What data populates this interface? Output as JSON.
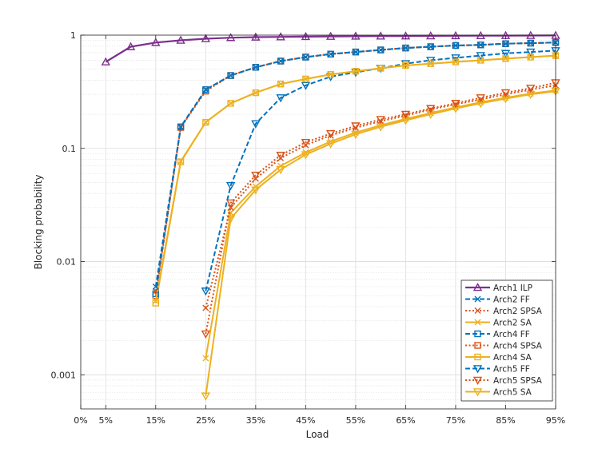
{
  "chart_data": {
    "type": "line",
    "title": "",
    "xlabel": "Load",
    "ylabel": "Blocking probability",
    "xlim": [
      0,
      95
    ],
    "ylim": [
      0.0005,
      1
    ],
    "yscale": "log",
    "grid": true,
    "legend_position": "bottom-right",
    "x_ticks": [
      {
        "value": 0,
        "label": "0%"
      },
      {
        "value": 5,
        "label": "5%"
      },
      {
        "value": 15,
        "label": "15%"
      },
      {
        "value": 25,
        "label": "25%"
      },
      {
        "value": 35,
        "label": "35%"
      },
      {
        "value": 45,
        "label": "45%"
      },
      {
        "value": 55,
        "label": "55%"
      },
      {
        "value": 65,
        "label": "65%"
      },
      {
        "value": 75,
        "label": "75%"
      },
      {
        "value": 85,
        "label": "85%"
      },
      {
        "value": 95,
        "label": "95%"
      }
    ],
    "y_ticks": [
      {
        "value": 0.001,
        "label": "0.001"
      },
      {
        "value": 0.01,
        "label": "0.01"
      },
      {
        "value": 0.1,
        "label": "0.1"
      },
      {
        "value": 1,
        "label": "1"
      }
    ],
    "series": [
      {
        "name": "Arch1 ILP",
        "color": "#7e2f8e",
        "dash": "solid",
        "marker": "triangle-up",
        "width": 2.2,
        "x": [
          5,
          10,
          15,
          20,
          25,
          30,
          35,
          40,
          45,
          50,
          55,
          60,
          65,
          70,
          75,
          80,
          85,
          90,
          95
        ],
        "y": [
          0.58,
          0.79,
          0.86,
          0.9,
          0.93,
          0.95,
          0.96,
          0.965,
          0.97,
          0.975,
          0.978,
          0.98,
          0.982,
          0.985,
          0.987,
          0.989,
          0.99,
          0.992,
          0.993
        ]
      },
      {
        "name": "Arch2 FF",
        "color": "#0072bd",
        "dash": "dash",
        "marker": "x",
        "width": 2,
        "x": [
          15,
          20,
          25,
          30,
          35,
          40,
          45,
          50,
          55,
          60,
          65,
          70,
          75,
          80,
          85,
          90,
          95
        ],
        "y": [
          0.006,
          0.155,
          0.33,
          0.44,
          0.52,
          0.59,
          0.64,
          0.68,
          0.71,
          0.74,
          0.77,
          0.79,
          0.81,
          0.82,
          0.84,
          0.85,
          0.86
        ]
      },
      {
        "name": "Arch2 SPSA",
        "color": "#d95319",
        "dash": "dot",
        "marker": "x",
        "width": 2,
        "x": [
          15,
          20,
          25,
          30,
          35,
          40,
          45,
          50,
          55,
          60,
          65,
          70,
          75,
          80,
          85,
          90,
          95
        ],
        "y": [
          0.0055,
          0.153,
          0.33,
          0.44,
          0.52,
          0.59,
          0.64,
          0.68,
          0.71,
          0.74,
          0.77,
          0.79,
          0.81,
          0.82,
          0.84,
          0.85,
          0.86
        ]
      },
      {
        "name": "Arch2 SA",
        "color": "#edb120",
        "dash": "solid",
        "marker": "x",
        "width": 2,
        "x": [
          15,
          20,
          25,
          30,
          35,
          40,
          45,
          50,
          55,
          60,
          65,
          70,
          75,
          80,
          85,
          90,
          95
        ],
        "y": [
          0.0045,
          0.077,
          0.17,
          0.25,
          0.31,
          0.37,
          0.41,
          0.45,
          0.48,
          0.51,
          0.54,
          0.56,
          0.58,
          0.6,
          0.62,
          0.64,
          0.66
        ]
      },
      {
        "name": "Arch4 FF",
        "color": "#0072bd",
        "dash": "dash",
        "marker": "square",
        "width": 2,
        "x": [
          15,
          20,
          25,
          30,
          35,
          40,
          45,
          50,
          55,
          60,
          65,
          70,
          75,
          80,
          85,
          90,
          95
        ],
        "y": [
          0.0052,
          0.155,
          0.33,
          0.44,
          0.52,
          0.59,
          0.64,
          0.68,
          0.71,
          0.74,
          0.77,
          0.79,
          0.81,
          0.82,
          0.84,
          0.85,
          0.86
        ]
      },
      {
        "name": "Arch4 SPSA",
        "color": "#d95319",
        "dash": "dot",
        "marker": "square",
        "width": 2,
        "x": [
          15,
          20,
          25,
          30,
          35,
          40,
          45,
          50,
          55,
          60,
          65,
          70,
          75,
          80,
          85,
          90,
          95
        ],
        "y": [
          0.005,
          0.153,
          0.32,
          0.44,
          0.52,
          0.59,
          0.64,
          0.68,
          0.71,
          0.74,
          0.77,
          0.79,
          0.81,
          0.82,
          0.84,
          0.85,
          0.86
        ]
      },
      {
        "name": "Arch4 SA",
        "color": "#edb120",
        "dash": "solid",
        "marker": "square",
        "width": 2,
        "x": [
          15,
          20,
          25,
          30,
          35,
          40,
          45,
          50,
          55,
          60,
          65,
          70,
          75,
          80,
          85,
          90,
          95
        ],
        "y": [
          0.0043,
          0.076,
          0.17,
          0.25,
          0.31,
          0.37,
          0.41,
          0.45,
          0.48,
          0.51,
          0.54,
          0.56,
          0.58,
          0.6,
          0.62,
          0.64,
          0.66
        ]
      },
      {
        "name": "Arch5 FF",
        "color": "#0072bd",
        "dash": "dash",
        "marker": "triangle-down",
        "width": 2,
        "x": [
          25,
          30,
          35,
          40,
          45,
          50,
          55,
          60,
          65,
          70,
          75,
          80,
          85,
          90,
          95
        ],
        "y": [
          0.0055,
          0.047,
          0.165,
          0.28,
          0.36,
          0.43,
          0.47,
          0.51,
          0.56,
          0.6,
          0.63,
          0.66,
          0.69,
          0.71,
          0.73
        ]
      },
      {
        "name": "Arch5 SPSA",
        "color": "#d95319",
        "dash": "dot",
        "marker": "triangle-down",
        "width": 2,
        "x": [
          25,
          30,
          35,
          40,
          45,
          50,
          55,
          60,
          65,
          70,
          75,
          80,
          85,
          90,
          95
        ],
        "y": [
          0.0023,
          0.033,
          0.058,
          0.087,
          0.113,
          0.135,
          0.158,
          0.18,
          0.2,
          0.225,
          0.25,
          0.28,
          0.31,
          0.34,
          0.38
        ]
      },
      {
        "name": "Arch5 SA",
        "color": "#edb120",
        "dash": "solid",
        "marker": "triangle-down",
        "width": 2,
        "x": [
          25,
          30,
          35,
          40,
          45,
          50,
          55,
          60,
          65,
          70,
          75,
          80,
          85,
          90,
          95
        ],
        "y": [
          0.00065,
          0.024,
          0.043,
          0.065,
          0.088,
          0.11,
          0.133,
          0.155,
          0.177,
          0.2,
          0.225,
          0.25,
          0.275,
          0.3,
          0.32
        ]
      },
      {
        "name": "",
        "color": "#d95319",
        "dash": "dot",
        "marker": "x",
        "width": 2,
        "legend": false,
        "x": [
          25,
          30,
          35,
          40,
          45,
          50,
          55,
          60,
          65,
          70,
          75,
          80,
          85,
          90,
          95
        ],
        "y": [
          0.0039,
          0.03,
          0.054,
          0.082,
          0.107,
          0.13,
          0.152,
          0.174,
          0.195,
          0.22,
          0.245,
          0.27,
          0.3,
          0.33,
          0.36
        ]
      },
      {
        "name": "",
        "color": "#edb120",
        "dash": "solid",
        "marker": "x",
        "width": 2,
        "legend": false,
        "x": [
          25,
          30,
          35,
          40,
          45,
          50,
          55,
          60,
          65,
          70,
          75,
          80,
          85,
          90,
          95
        ],
        "y": [
          0.0014,
          0.027,
          0.046,
          0.07,
          0.092,
          0.115,
          0.138,
          0.16,
          0.182,
          0.205,
          0.23,
          0.255,
          0.28,
          0.305,
          0.325
        ]
      }
    ]
  }
}
